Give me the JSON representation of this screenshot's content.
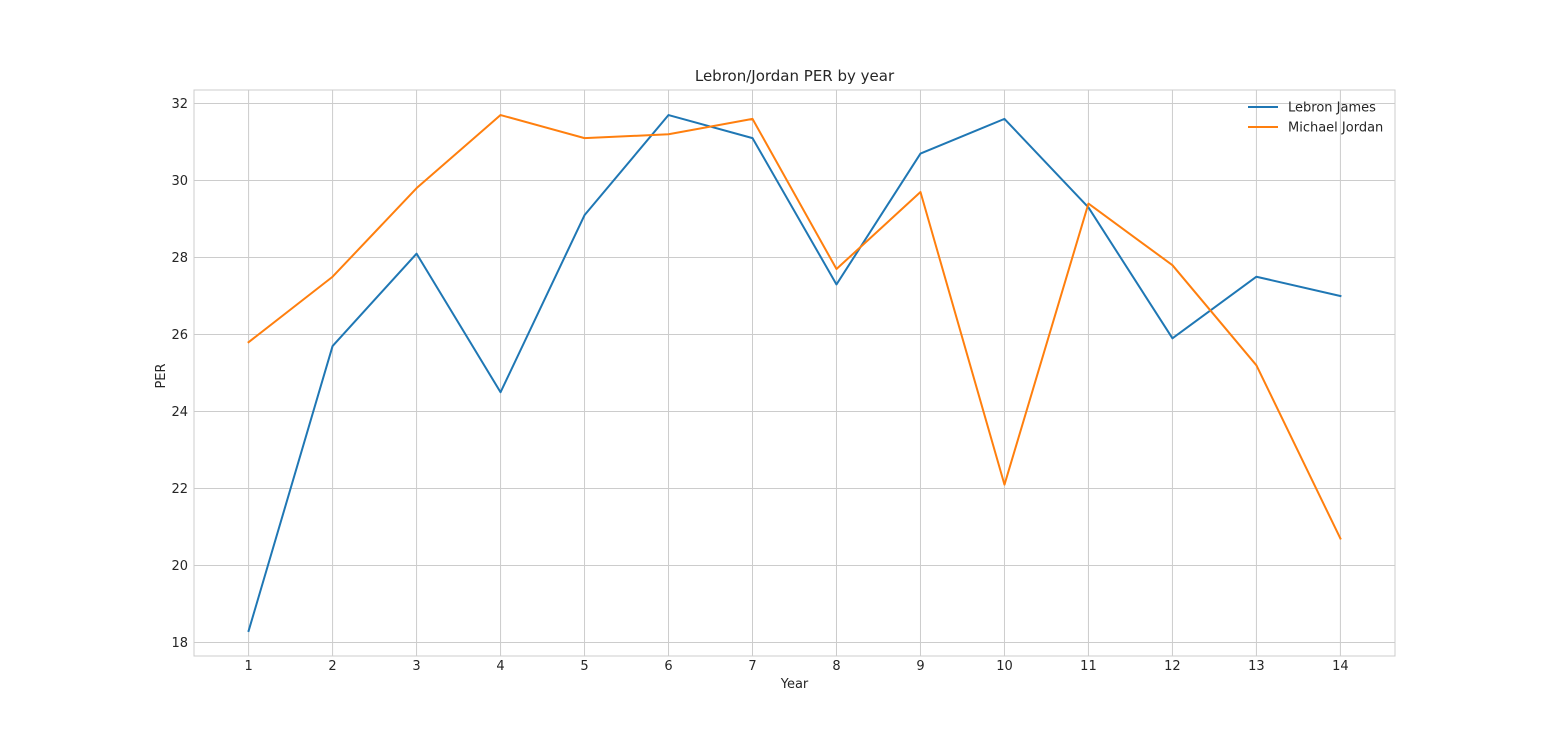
{
  "chart_data": {
    "type": "line",
    "title": "Lebron/Jordan PER by year",
    "xlabel": "Year",
    "ylabel": "PER",
    "x": [
      1,
      2,
      3,
      4,
      5,
      6,
      7,
      8,
      9,
      10,
      11,
      12,
      13,
      14
    ],
    "xticks": [
      "1",
      "2",
      "3",
      "4",
      "5",
      "6",
      "7",
      "8",
      "9",
      "10",
      "11",
      "12",
      "13",
      "14"
    ],
    "xlim": [
      0.35,
      14.65
    ],
    "yticks": [
      18,
      20,
      22,
      24,
      26,
      28,
      30,
      32
    ],
    "ylim": [
      17.65,
      32.35
    ],
    "grid": true,
    "legend_position": "top-right",
    "series": [
      {
        "name": "Lebron James",
        "color": "#1f77b4",
        "values": [
          18.3,
          25.7,
          28.1,
          24.5,
          29.1,
          31.7,
          31.1,
          27.3,
          30.7,
          31.6,
          29.3,
          25.9,
          27.5,
          27.0
        ]
      },
      {
        "name": "Michael Jordan",
        "color": "#ff7f0e",
        "values": [
          25.8,
          27.5,
          29.8,
          31.7,
          31.1,
          31.2,
          31.6,
          27.7,
          29.7,
          22.1,
          29.4,
          27.8,
          25.2,
          20.7
        ]
      }
    ]
  }
}
